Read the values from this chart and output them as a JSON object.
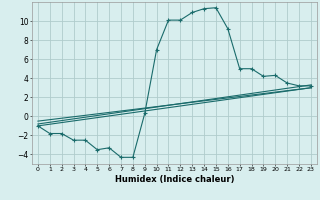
{
  "xlabel": "Humidex (Indice chaleur)",
  "xlim": [
    -0.5,
    23.5
  ],
  "ylim": [
    -5,
    12
  ],
  "yticks": [
    -4,
    -2,
    0,
    2,
    4,
    6,
    8,
    10
  ],
  "xtick_labels": [
    "0",
    "1",
    "2",
    "3",
    "4",
    "5",
    "6",
    "7",
    "8",
    "9",
    "10",
    "11",
    "12",
    "13",
    "14",
    "15",
    "16",
    "17",
    "18",
    "19",
    "20",
    "21",
    "22",
    "23"
  ],
  "bg_color": "#d8eeee",
  "grid_color": "#b0cccc",
  "line_color": "#1a6b6b",
  "main_line_x": [
    0,
    1,
    2,
    3,
    4,
    5,
    6,
    7,
    8,
    9,
    10,
    11,
    12,
    13,
    14,
    15,
    16,
    17,
    18,
    19,
    20,
    21,
    22,
    23
  ],
  "main_line_y": [
    -1.0,
    -1.8,
    -1.8,
    -2.5,
    -2.5,
    -3.5,
    -3.3,
    -4.3,
    -4.3,
    0.3,
    7.0,
    10.1,
    10.1,
    10.9,
    11.3,
    11.4,
    9.2,
    5.0,
    5.0,
    4.2,
    4.3,
    3.5,
    3.2,
    3.2
  ],
  "line2_x": [
    0,
    23
  ],
  "line2_y": [
    -1.0,
    3.0
  ],
  "line3_x": [
    0,
    23
  ],
  "line3_y": [
    -0.8,
    3.3
  ],
  "line4_x": [
    0,
    23
  ],
  "line4_y": [
    -0.5,
    3.0
  ]
}
